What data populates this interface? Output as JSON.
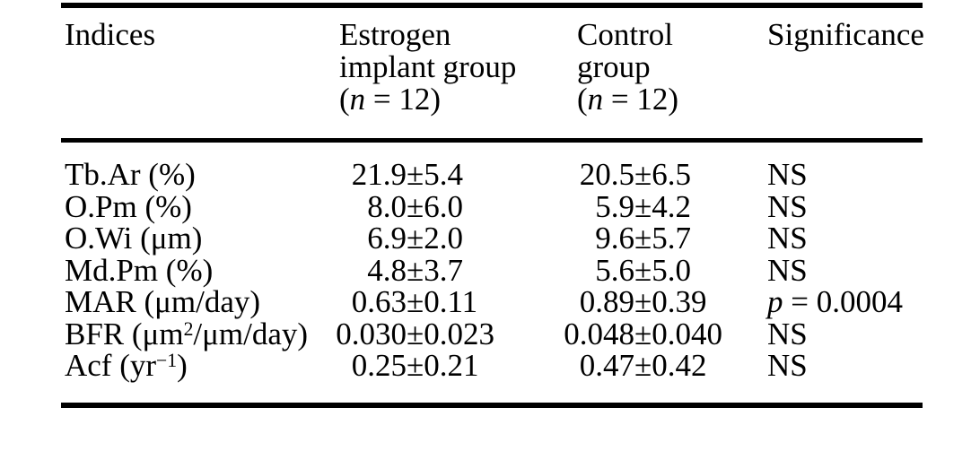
{
  "table": {
    "pm": "±",
    "columns": {
      "indices": "Indices",
      "estrogen": {
        "line1": "Estrogen",
        "line2": "implant group",
        "n_open": "(",
        "n_italic": "n",
        "n_rest": " = 12)"
      },
      "control": {
        "line1": "Control",
        "line2": "group",
        "n_open": "(",
        "n_italic": "n",
        "n_rest": " = 12)"
      },
      "significance": "Significance"
    },
    "rows": [
      {
        "label_pre": "Tb.Ar (%)",
        "label_sup": "",
        "label_post": "",
        "estrogen_mean": "21.9",
        "estrogen_sd": "5.4",
        "control_mean": "20.5",
        "control_sd": "6.5",
        "sig_italic": "",
        "sig_rest": "NS"
      },
      {
        "label_pre": "O.Pm (%)",
        "label_sup": "",
        "label_post": "",
        "estrogen_mean": "8.0",
        "estrogen_sd": "6.0",
        "control_mean": "5.9",
        "control_sd": "4.2",
        "sig_italic": "",
        "sig_rest": "NS"
      },
      {
        "label_pre": "O.Wi (μm)",
        "label_sup": "",
        "label_post": "",
        "estrogen_mean": "6.9",
        "estrogen_sd": "2.0",
        "control_mean": "9.6",
        "control_sd": "5.7",
        "sig_italic": "",
        "sig_rest": "NS"
      },
      {
        "label_pre": "Md.Pm (%)",
        "label_sup": "",
        "label_post": "",
        "estrogen_mean": "4.8",
        "estrogen_sd": "3.7",
        "control_mean": "5.6",
        "control_sd": "5.0",
        "sig_italic": "",
        "sig_rest": "NS"
      },
      {
        "label_pre": "MAR (μm/day)",
        "label_sup": "",
        "label_post": "",
        "estrogen_mean": "0.63",
        "estrogen_sd": "0.11",
        "control_mean": "0.89",
        "control_sd": "0.39",
        "sig_italic": "p",
        "sig_rest": " = 0.0004"
      },
      {
        "label_pre": "BFR (μm",
        "label_sup": "2",
        "label_post": "/μm/day)",
        "estrogen_mean": "0.030",
        "estrogen_sd": "0.023",
        "control_mean": "0.048",
        "control_sd": "0.040",
        "sig_italic": "",
        "sig_rest": "NS"
      },
      {
        "label_pre": "Acf (yr",
        "label_sup": "−1",
        "label_post": ")",
        "estrogen_mean": "0.25",
        "estrogen_sd": "0.21",
        "control_mean": "0.47",
        "control_sd": "0.42",
        "sig_italic": "",
        "sig_rest": "NS"
      }
    ]
  },
  "colors": {
    "text": "#000000",
    "background": "#ffffff",
    "rule": "#000000"
  }
}
